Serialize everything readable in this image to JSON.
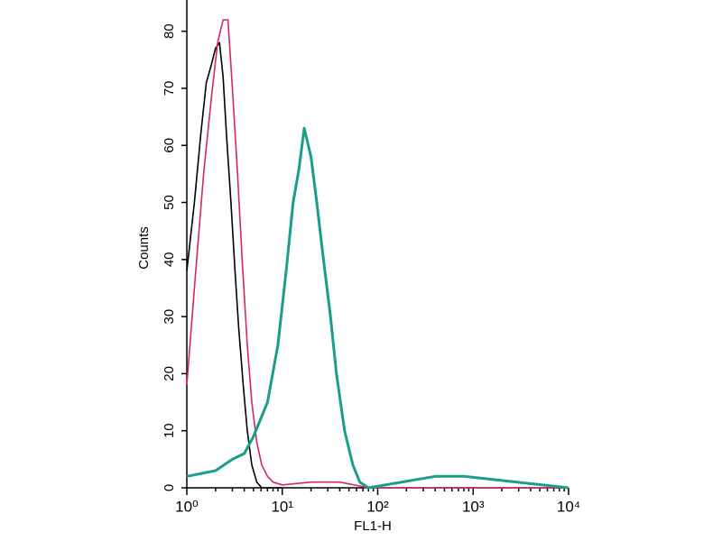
{
  "chart_data": {
    "type": "line",
    "xlabel": "FL1-H",
    "ylabel": "Counts",
    "xscale": "log",
    "xlim": [
      1,
      10000
    ],
    "ylim": [
      0,
      85
    ],
    "xticks": [
      {
        "value": 1,
        "label": "10⁰"
      },
      {
        "value": 10,
        "label": "10¹"
      },
      {
        "value": 100,
        "label": "10²"
      },
      {
        "value": 1000,
        "label": "10³"
      },
      {
        "value": 10000,
        "label": "10⁴"
      }
    ],
    "yticks": [
      0,
      10,
      20,
      30,
      40,
      50,
      60,
      70,
      80
    ],
    "series": [
      {
        "color": "#000000",
        "x": [
          1.0,
          1.2,
          1.4,
          1.6,
          1.8,
          2.0,
          2.2,
          2.4,
          2.6,
          2.9,
          3.2,
          3.5,
          3.9,
          4.3,
          4.8,
          5.4,
          6.1,
          10
        ],
        "values": [
          38,
          50,
          62,
          71,
          74,
          77,
          78,
          72,
          62,
          50,
          38,
          28,
          18,
          10,
          4,
          1,
          0,
          0
        ]
      },
      {
        "color": "#d6246e",
        "x": [
          1.0,
          1.2,
          1.5,
          1.8,
          2.1,
          2.4,
          2.7,
          3.0,
          3.4,
          3.8,
          4.3,
          4.8,
          5.4,
          6.1,
          7,
          8,
          10,
          20,
          40,
          80,
          10000
        ],
        "values": [
          18,
          35,
          55,
          68,
          78,
          82,
          82,
          70,
          55,
          40,
          25,
          15,
          8,
          4,
          2,
          1,
          0.5,
          1,
          1,
          0,
          0
        ]
      },
      {
        "color": "#1a9e8a",
        "x": [
          1.0,
          2.0,
          3,
          4,
          5,
          7,
          9,
          11,
          13,
          15,
          17,
          20,
          23,
          27,
          32,
          37,
          45,
          55,
          65,
          80,
          400,
          500,
          800,
          10000
        ],
        "values": [
          2,
          3,
          5,
          6,
          9,
          15,
          25,
          38,
          50,
          56,
          63,
          58,
          50,
          40,
          30,
          20,
          10,
          4,
          1,
          0,
          2,
          2,
          2,
          0
        ]
      }
    ]
  }
}
